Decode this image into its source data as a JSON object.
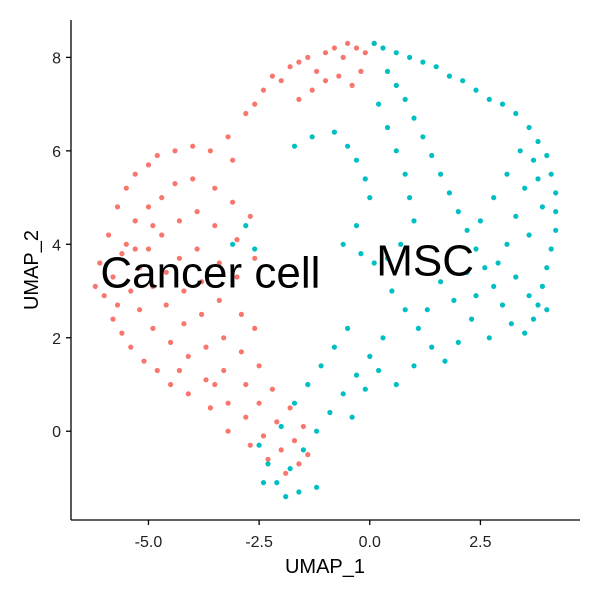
{
  "chart_data": {
    "type": "scatter",
    "xlabel": "UMAP_1",
    "ylabel": "UMAP_2",
    "xlim": [
      -6.75,
      4.75
    ],
    "ylim": [
      -1.9,
      8.8
    ],
    "x_ticks": [
      -5.0,
      -2.5,
      0.0,
      2.5
    ],
    "x_tick_labels": [
      "-5.0",
      "-2.5",
      "0.0",
      "2.5"
    ],
    "y_ticks": [
      0,
      2,
      4,
      6,
      8
    ],
    "y_tick_labels": [
      "0",
      "2",
      "4",
      "6",
      "8"
    ],
    "grid": false,
    "legend": "none",
    "series": [
      {
        "name": "Cancer cell",
        "color": "#F8766D",
        "label_position": [
          -3.6,
          3.4
        ],
        "points": [
          [
            -6.2,
            3.1
          ],
          [
            -6.1,
            3.6
          ],
          [
            -6.0,
            2.9
          ],
          [
            -5.9,
            4.2
          ],
          [
            -5.8,
            3.3
          ],
          [
            -5.8,
            2.4
          ],
          [
            -5.7,
            4.8
          ],
          [
            -5.6,
            3.8
          ],
          [
            -5.6,
            2.1
          ],
          [
            -5.5,
            5.2
          ],
          [
            -5.5,
            4.0
          ],
          [
            -5.4,
            3.0
          ],
          [
            -5.4,
            1.8
          ],
          [
            -5.3,
            5.5
          ],
          [
            -5.3,
            4.5
          ],
          [
            -5.2,
            3.5
          ],
          [
            -5.2,
            2.6
          ],
          [
            -5.1,
            1.5
          ],
          [
            -5.0,
            5.7
          ],
          [
            -5.0,
            4.8
          ],
          [
            -5.0,
            3.9
          ],
          [
            -4.9,
            3.1
          ],
          [
            -4.9,
            2.2
          ],
          [
            -4.8,
            1.3
          ],
          [
            -4.8,
            5.9
          ],
          [
            -4.7,
            5.0
          ],
          [
            -4.7,
            4.2
          ],
          [
            -4.6,
            3.4
          ],
          [
            -4.6,
            2.7
          ],
          [
            -4.5,
            1.9
          ],
          [
            -4.5,
            1.0
          ],
          [
            -4.4,
            6.0
          ],
          [
            -4.4,
            5.3
          ],
          [
            -4.3,
            4.5
          ],
          [
            -4.3,
            3.7
          ],
          [
            -4.2,
            3.0
          ],
          [
            -4.2,
            2.3
          ],
          [
            -4.1,
            1.6
          ],
          [
            -4.1,
            0.8
          ],
          [
            -4.0,
            6.1
          ],
          [
            -4.0,
            5.4
          ],
          [
            -3.9,
            4.7
          ],
          [
            -3.9,
            3.9
          ],
          [
            -3.8,
            3.2
          ],
          [
            -3.8,
            2.5
          ],
          [
            -3.7,
            1.8
          ],
          [
            -3.7,
            1.1
          ],
          [
            -3.6,
            0.5
          ],
          [
            -3.6,
            6.0
          ],
          [
            -3.5,
            5.2
          ],
          [
            -3.5,
            4.4
          ],
          [
            -3.4,
            3.6
          ],
          [
            -3.4,
            2.8
          ],
          [
            -3.3,
            2.0
          ],
          [
            -3.3,
            1.3
          ],
          [
            -3.2,
            0.6
          ],
          [
            -3.2,
            0.0
          ],
          [
            -3.1,
            5.8
          ],
          [
            -3.1,
            4.9
          ],
          [
            -3.0,
            4.1
          ],
          [
            -3.0,
            3.3
          ],
          [
            -2.9,
            2.5
          ],
          [
            -2.9,
            1.7
          ],
          [
            -2.8,
            1.0
          ],
          [
            -2.8,
            0.3
          ],
          [
            -2.7,
            -0.3
          ],
          [
            -2.7,
            4.6
          ],
          [
            -2.6,
            3.7
          ],
          [
            -2.6,
            2.2
          ],
          [
            -2.5,
            1.4
          ],
          [
            -2.5,
            0.6
          ],
          [
            -2.4,
            -0.1
          ],
          [
            -2.3,
            -0.6
          ],
          [
            -2.2,
            0.9
          ],
          [
            -2.1,
            0.2
          ],
          [
            -2.0,
            -0.4
          ],
          [
            -1.9,
            -0.9
          ],
          [
            -1.8,
            0.5
          ],
          [
            -1.7,
            -0.2
          ],
          [
            -1.6,
            -0.7
          ],
          [
            -1.5,
            0.1
          ],
          [
            -1.4,
            -0.5
          ],
          [
            -2.6,
            7.0
          ],
          [
            -2.4,
            7.3
          ],
          [
            -2.2,
            7.6
          ],
          [
            -2.0,
            7.5
          ],
          [
            -1.8,
            7.8
          ],
          [
            -1.6,
            7.9
          ],
          [
            -1.4,
            8.0
          ],
          [
            -1.2,
            7.7
          ],
          [
            -1.0,
            8.1
          ],
          [
            -0.8,
            8.2
          ],
          [
            -0.6,
            8.0
          ],
          [
            -0.5,
            8.3
          ],
          [
            -0.3,
            8.2
          ],
          [
            -0.1,
            8.1
          ],
          [
            0.1,
            8.3
          ],
          [
            -1.3,
            7.3
          ],
          [
            -1.0,
            7.5
          ],
          [
            -0.7,
            7.6
          ],
          [
            -0.4,
            7.4
          ],
          [
            -0.2,
            7.7
          ],
          [
            -1.6,
            7.1
          ],
          [
            -2.8,
            6.8
          ],
          [
            -3.2,
            6.3
          ],
          [
            -4.9,
            4.4
          ],
          [
            -5.3,
            3.9
          ],
          [
            -5.7,
            2.7
          ],
          [
            -4.3,
            1.3
          ],
          [
            -3.5,
            1.0
          ]
        ]
      },
      {
        "name": "MSC",
        "color": "#00BFC4",
        "label_position": [
          1.25,
          3.65
        ],
        "points": [
          [
            0.1,
            8.3
          ],
          [
            0.3,
            8.2
          ],
          [
            0.6,
            8.1
          ],
          [
            0.9,
            8.0
          ],
          [
            1.2,
            7.9
          ],
          [
            1.5,
            7.8
          ],
          [
            1.8,
            7.6
          ],
          [
            2.1,
            7.5
          ],
          [
            2.4,
            7.3
          ],
          [
            2.7,
            7.1
          ],
          [
            3.0,
            7.0
          ],
          [
            3.3,
            6.8
          ],
          [
            3.6,
            6.5
          ],
          [
            3.8,
            6.2
          ],
          [
            4.0,
            5.9
          ],
          [
            4.1,
            5.5
          ],
          [
            4.2,
            5.1
          ],
          [
            4.2,
            4.7
          ],
          [
            4.2,
            4.3
          ],
          [
            4.1,
            3.9
          ],
          [
            4.0,
            3.5
          ],
          [
            3.9,
            3.1
          ],
          [
            3.8,
            2.7
          ],
          [
            3.7,
            2.4
          ],
          [
            3.5,
            2.1
          ],
          [
            3.2,
            2.3
          ],
          [
            3.0,
            2.7
          ],
          [
            2.8,
            3.1
          ],
          [
            2.6,
            3.5
          ],
          [
            2.4,
            3.9
          ],
          [
            2.2,
            4.3
          ],
          [
            2.0,
            4.7
          ],
          [
            1.8,
            5.1
          ],
          [
            1.6,
            5.5
          ],
          [
            1.4,
            5.9
          ],
          [
            1.2,
            6.3
          ],
          [
            1.0,
            6.7
          ],
          [
            0.8,
            7.1
          ],
          [
            0.6,
            7.4
          ],
          [
            0.4,
            7.7
          ],
          [
            0.2,
            7.0
          ],
          [
            0.4,
            6.5
          ],
          [
            0.6,
            6.0
          ],
          [
            0.8,
            5.5
          ],
          [
            0.9,
            5.0
          ],
          [
            1.0,
            4.5
          ],
          [
            0.7,
            4.0
          ],
          [
            0.4,
            3.7
          ],
          [
            0.1,
            3.6
          ],
          [
            -0.2,
            3.8
          ],
          [
            0.5,
            3.0
          ],
          [
            0.8,
            2.6
          ],
          [
            1.1,
            2.2
          ],
          [
            1.4,
            1.8
          ],
          [
            1.7,
            1.5
          ],
          [
            2.0,
            1.9
          ],
          [
            2.3,
            2.4
          ],
          [
            0.3,
            2.0
          ],
          [
            0.0,
            1.6
          ],
          [
            -0.3,
            1.2
          ],
          [
            -0.6,
            0.8
          ],
          [
            -0.9,
            0.4
          ],
          [
            -1.2,
            0.0
          ],
          [
            -1.5,
            -0.4
          ],
          [
            -1.8,
            -0.8
          ],
          [
            -2.1,
            -1.1
          ],
          [
            -2.3,
            -0.7
          ],
          [
            -2.5,
            -0.3
          ],
          [
            -2.0,
            0.1
          ],
          [
            -1.7,
            0.6
          ],
          [
            -1.4,
            1.0
          ],
          [
            -1.1,
            1.4
          ],
          [
            -0.8,
            1.8
          ],
          [
            -0.5,
            2.2
          ],
          [
            -1.2,
            -1.2
          ],
          [
            -1.6,
            -1.3
          ],
          [
            -1.9,
            -1.4
          ],
          [
            -2.4,
            -1.1
          ],
          [
            -0.4,
            0.3
          ],
          [
            -0.1,
            0.9
          ],
          [
            0.2,
            1.3
          ],
          [
            0.6,
            1.0
          ],
          [
            1.0,
            1.4
          ],
          [
            1.3,
            2.6
          ],
          [
            1.6,
            3.2
          ],
          [
            1.9,
            2.8
          ],
          [
            2.2,
            3.4
          ],
          [
            2.5,
            4.5
          ],
          [
            2.8,
            5.0
          ],
          [
            3.1,
            5.5
          ],
          [
            3.4,
            6.0
          ],
          [
            3.7,
            5.8
          ],
          [
            3.5,
            5.2
          ],
          [
            3.3,
            4.6
          ],
          [
            3.1,
            4.0
          ],
          [
            2.9,
            3.6
          ],
          [
            3.6,
            4.2
          ],
          [
            3.9,
            4.8
          ],
          [
            3.8,
            5.4
          ],
          [
            4.0,
            2.6
          ],
          [
            3.6,
            2.9
          ],
          [
            3.3,
            3.3
          ],
          [
            2.7,
            2.0
          ],
          [
            2.4,
            2.9
          ],
          [
            -1.7,
            6.1
          ],
          [
            -1.3,
            6.3
          ],
          [
            -0.8,
            6.4
          ],
          [
            -0.5,
            6.1
          ],
          [
            -0.3,
            5.8
          ],
          [
            -0.1,
            5.4
          ],
          [
            0.0,
            5.0
          ],
          [
            -0.3,
            4.4
          ],
          [
            -0.6,
            4.0
          ],
          [
            -3.1,
            4.0
          ],
          [
            -2.8,
            4.4
          ],
          [
            -2.6,
            3.9
          ]
        ]
      }
    ]
  }
}
